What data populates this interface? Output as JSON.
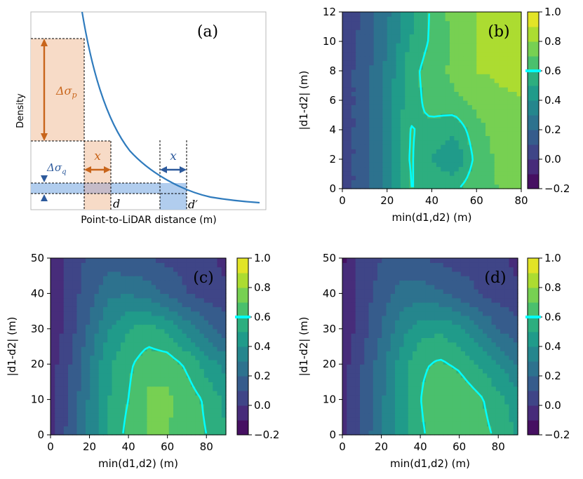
{
  "chart_data": [
    {
      "id": "a",
      "type": "line",
      "panel_label": "(a)",
      "xlabel": "Point-to-LiDAR distance (m)",
      "ylabel": "Density",
      "curve": "decreasing density vs distance (approx. 1/d^2)",
      "annotations": {
        "delta_sigma_p": "Δσ",
        "delta_sigma_p_sub": "p",
        "delta_sigma_q": "Δσ",
        "delta_sigma_q_sub": "q",
        "x_near": "x",
        "x_far": "x",
        "d": "d",
        "d_prime": "d′"
      }
    },
    {
      "id": "b",
      "type": "heatmap",
      "panel_label": "(b)",
      "xlabel": "min(d1,d2) (m)",
      "ylabel": "|d1-d2| (m)",
      "xlim": [
        0,
        80
      ],
      "ylim": [
        0,
        12
      ],
      "xticks": [
        0,
        20,
        40,
        60,
        80
      ],
      "yticks": [
        0,
        2,
        4,
        6,
        8,
        10,
        12
      ],
      "colorbar": {
        "min": -0.2,
        "max": 1.0,
        "ticks": [
          -0.2,
          0.0,
          0.2,
          0.4,
          0.6,
          0.8,
          1.0
        ],
        "contour_level": 0.6
      },
      "x": [
        0,
        10,
        20,
        30,
        40,
        50,
        60,
        70,
        80
      ],
      "y": [
        0,
        2,
        4,
        6,
        8,
        10,
        12
      ],
      "z": [
        [
          0.05,
          0.15,
          0.35,
          0.6,
          0.6,
          0.58,
          0.68,
          0.7,
          0.72
        ],
        [
          0.05,
          0.15,
          0.35,
          0.62,
          0.5,
          0.4,
          0.64,
          0.72,
          0.72
        ],
        [
          0.05,
          0.15,
          0.35,
          0.61,
          0.57,
          0.52,
          0.67,
          0.74,
          0.75
        ],
        [
          0.05,
          0.15,
          0.35,
          0.55,
          0.64,
          0.68,
          0.72,
          0.78,
          0.8
        ],
        [
          0.05,
          0.15,
          0.33,
          0.55,
          0.66,
          0.72,
          0.8,
          0.82,
          0.82
        ],
        [
          0.05,
          0.13,
          0.3,
          0.5,
          0.62,
          0.72,
          0.8,
          0.82,
          0.82
        ],
        [
          0.03,
          0.12,
          0.28,
          0.45,
          0.62,
          0.74,
          0.8,
          0.82,
          0.82
        ]
      ]
    },
    {
      "id": "c",
      "type": "heatmap",
      "panel_label": "(c)",
      "xlabel": "min(d1,d2) (m)",
      "ylabel": "|d1-d2| (m)",
      "xlim": [
        0,
        90
      ],
      "ylim": [
        0,
        50
      ],
      "xticks": [
        0,
        20,
        40,
        60,
        80
      ],
      "yticks": [
        0,
        10,
        20,
        30,
        40,
        50
      ],
      "colorbar": {
        "min": -0.2,
        "max": 1.0,
        "ticks": [
          -0.2,
          0.0,
          0.2,
          0.4,
          0.6,
          0.8,
          1.0
        ],
        "contour_level": 0.6
      },
      "x": [
        0,
        10,
        20,
        30,
        40,
        50,
        60,
        70,
        80,
        90
      ],
      "y": [
        0,
        10,
        20,
        30,
        40,
        50
      ],
      "z": [
        [
          -0.05,
          0.15,
          0.32,
          0.5,
          0.64,
          0.7,
          0.7,
          0.66,
          0.6,
          0.5
        ],
        [
          -0.05,
          0.1,
          0.32,
          0.5,
          0.6,
          0.72,
          0.72,
          0.66,
          0.58,
          0.48
        ],
        [
          -0.05,
          0.1,
          0.3,
          0.48,
          0.58,
          0.66,
          0.66,
          0.58,
          0.46,
          0.36
        ],
        [
          -0.08,
          0.05,
          0.22,
          0.4,
          0.5,
          0.54,
          0.48,
          0.36,
          0.24,
          0.14
        ],
        [
          -0.1,
          0.05,
          0.16,
          0.28,
          0.3,
          0.26,
          0.18,
          0.1,
          0.06,
          0.04
        ],
        [
          -0.12,
          0.05,
          0.12,
          0.14,
          0.12,
          0.1,
          0.08,
          0.06,
          0.04,
          -0.05
        ]
      ]
    },
    {
      "id": "d",
      "type": "heatmap",
      "panel_label": "(d)",
      "xlabel": "min(d1,d2) (m)",
      "ylabel": "|d1-d2| (m)",
      "xlim": [
        0,
        90
      ],
      "ylim": [
        0,
        50
      ],
      "xticks": [
        0,
        20,
        40,
        60,
        80
      ],
      "yticks": [
        0,
        10,
        20,
        30,
        40,
        50
      ],
      "colorbar": {
        "min": -0.2,
        "max": 1.0,
        "ticks": [
          -0.2,
          0.0,
          0.2,
          0.4,
          0.6,
          0.8,
          1.0
        ],
        "contour_level": 0.6
      },
      "x": [
        0,
        10,
        20,
        30,
        40,
        50,
        60,
        70,
        80,
        90
      ],
      "y": [
        0,
        10,
        20,
        30,
        40,
        50
      ],
      "z": [
        [
          -0.05,
          0.12,
          0.3,
          0.46,
          0.58,
          0.66,
          0.68,
          0.64,
          0.58,
          0.48
        ],
        [
          -0.05,
          0.1,
          0.28,
          0.44,
          0.6,
          0.68,
          0.68,
          0.62,
          0.54,
          0.44
        ],
        [
          -0.05,
          0.1,
          0.26,
          0.44,
          0.58,
          0.62,
          0.58,
          0.5,
          0.4,
          0.3
        ],
        [
          -0.08,
          0.05,
          0.2,
          0.36,
          0.46,
          0.48,
          0.42,
          0.32,
          0.2,
          0.12
        ],
        [
          -0.1,
          0.05,
          0.14,
          0.24,
          0.26,
          0.22,
          0.16,
          0.1,
          0.06,
          0.04
        ],
        [
          -0.12,
          0.04,
          0.1,
          0.12,
          0.1,
          0.08,
          0.06,
          0.05,
          0.04,
          -0.05
        ]
      ]
    }
  ]
}
